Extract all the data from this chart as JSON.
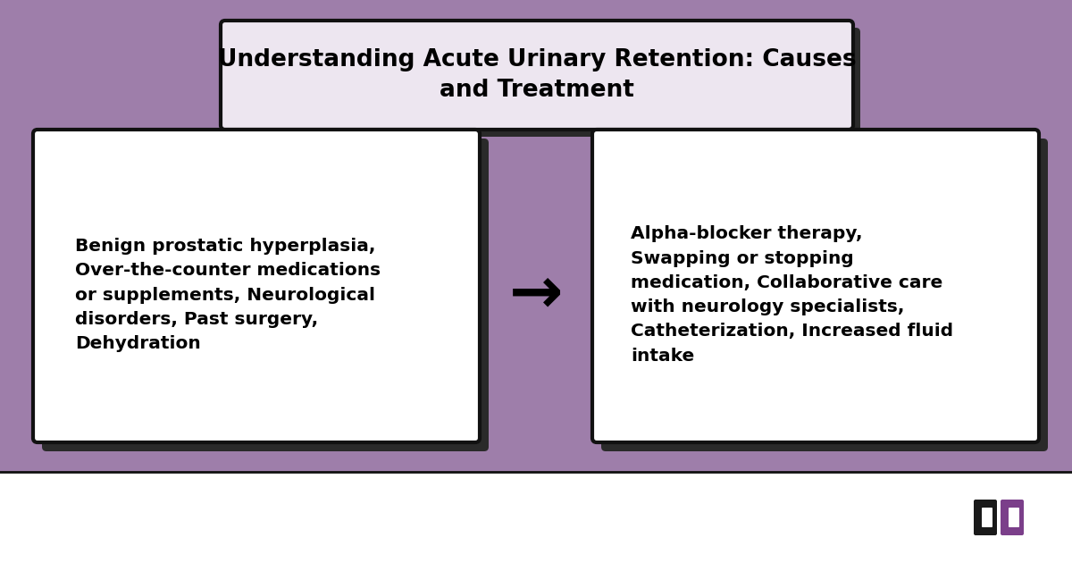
{
  "title": "Understanding Acute Urinary Retention: Causes\nand Treatment",
  "bg_color": "#9e7eaa",
  "box_bg": "#ffffff",
  "box_border": "#111111",
  "title_box_bg": "#ede6f0",
  "causes_text": "Benign prostatic hyperplasia,\nOver-the-counter medications\nor supplements, Neurological\ndisorders, Past surgery,\nDehydration",
  "treatments_text": "Alpha-blocker therapy,\nSwapping or stopping\nmedication, Collaborative care\nwith neurology specialists,\nCatheterization, Increased fluid\nintake",
  "arrow": "→",
  "text_color": "#000000",
  "shadow_color": "#2a2a2a",
  "footer_bg": "#ffffff",
  "footer_line": "#111111",
  "logo_black": "#1a1a1a",
  "logo_purple": "#7b3f8a",
  "font_size_title": 19,
  "font_size_body": 14.5
}
